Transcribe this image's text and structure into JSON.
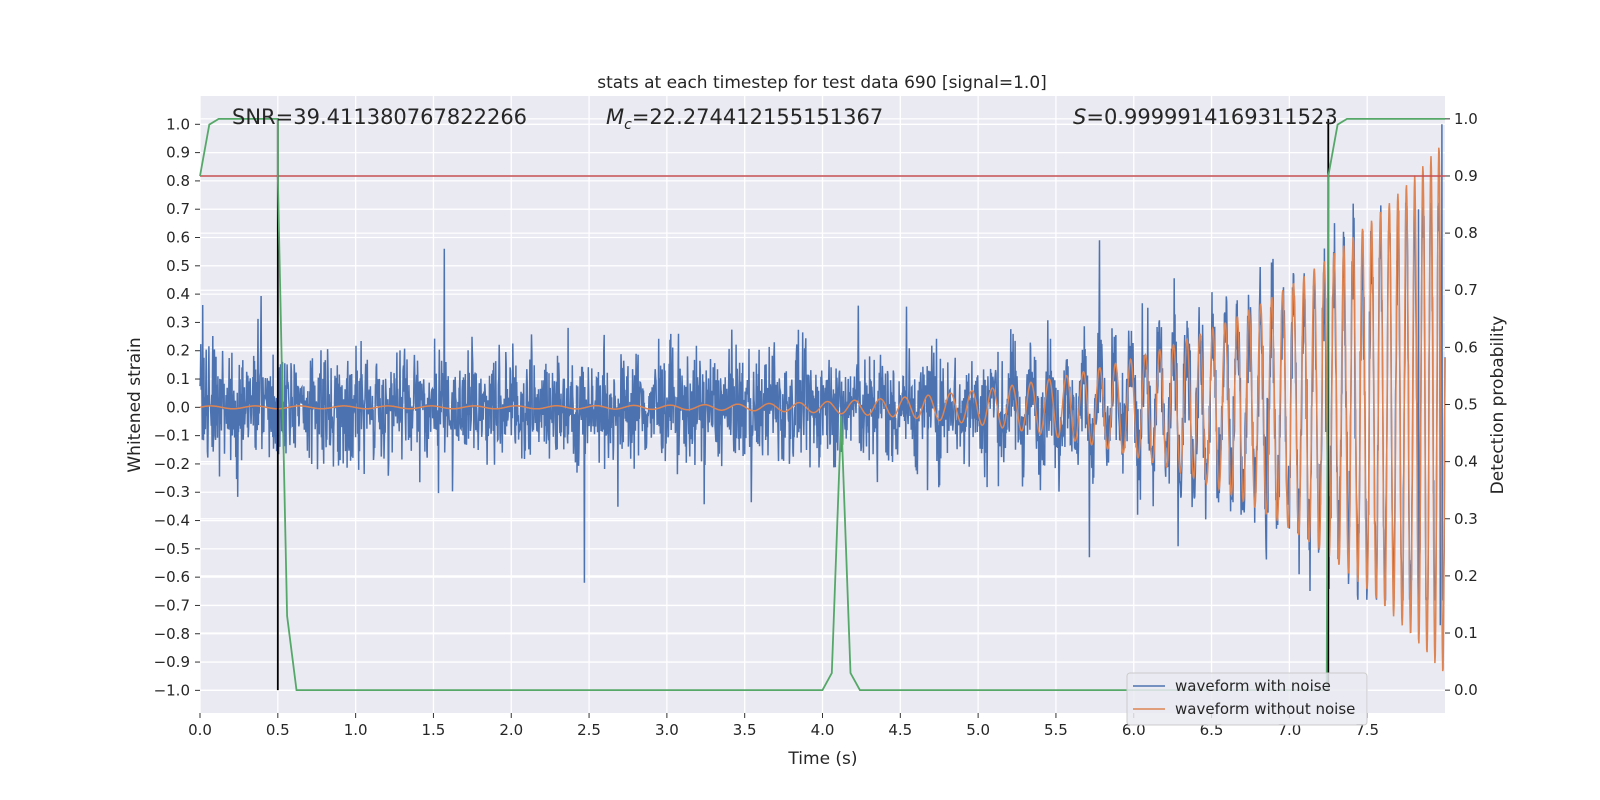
{
  "chart_data": {
    "type": "line",
    "title": "stats at each timestep for test data 690 [signal=1.0]",
    "xlabel": "Time (s)",
    "ylabel": "Whitened strain",
    "y2label": "Detection probability",
    "xlim": [
      0.0,
      8.0
    ],
    "ylim": [
      -1.08,
      1.1
    ],
    "y2lim": [
      -0.04,
      1.04
    ],
    "x_ticks": [
      0.0,
      0.5,
      1.0,
      1.5,
      2.0,
      2.5,
      3.0,
      3.5,
      4.0,
      4.5,
      5.0,
      5.5,
      6.0,
      6.5,
      7.0,
      7.5
    ],
    "x_tick_labels": [
      "0.0",
      "0.5",
      "1.0",
      "1.5",
      "2.0",
      "2.5",
      "3.0",
      "3.5",
      "4.0",
      "4.5",
      "5.0",
      "5.5",
      "6.0",
      "6.5",
      "7.0",
      "7.5"
    ],
    "y_ticks": [
      1.0,
      0.9,
      0.8,
      0.7,
      0.6,
      0.5,
      0.4,
      0.3,
      0.2,
      0.1,
      0.0,
      -0.1,
      -0.2,
      -0.3,
      -0.4,
      -0.5,
      -0.6,
      -0.7,
      -0.8,
      -0.9,
      -1.0
    ],
    "y_tick_labels": [
      "1.0",
      "0.9",
      "0.8",
      "0.7",
      "0.6",
      "0.5",
      "0.4",
      "0.3",
      "0.2",
      "0.1",
      "0.0",
      "−0.1",
      "−0.2",
      "−0.3",
      "−0.4",
      "−0.5",
      "−0.6",
      "−0.7",
      "−0.8",
      "−0.9",
      "−1.0"
    ],
    "y2_ticks": [
      1.0,
      0.9,
      0.8,
      0.7,
      0.6,
      0.5,
      0.4,
      0.3,
      0.2,
      0.1,
      0.0
    ],
    "y2_tick_labels": [
      "1.0",
      "0.9",
      "0.8",
      "0.7",
      "0.6",
      "0.5",
      "0.4",
      "0.3",
      "0.2",
      "0.1",
      "0.0"
    ],
    "annotations": {
      "snr": "SNR=39.411380767822266",
      "mc_symbol": "M",
      "mc_subscript": "c",
      "mc_value": "=22.274412155151367",
      "s_symbol": "S",
      "s_value": "=0.9999914169311523"
    },
    "threshold": {
      "axis": "y2",
      "value": 0.9,
      "color": "#c44e52"
    },
    "vertical_markers": [
      {
        "x": 0.5,
        "y2_from": 0.0,
        "y2_to": 1.0,
        "color": "#000000"
      },
      {
        "x": 7.25,
        "y2_from": 0.0,
        "y2_to": 1.0,
        "color": "#000000"
      }
    ],
    "series": [
      {
        "name": "waveform with noise",
        "axis": "y",
        "color": "#4c72b0",
        "style": "noisy signal, amplitude ~0.2 with peaks to ±0.5, growing chirp near end",
        "x_range": [
          0.0,
          8.0
        ],
        "peaks": [
          {
            "x": 1.57,
            "y": 0.56
          },
          {
            "x": 2.47,
            "y": -0.62
          },
          {
            "x": 5.78,
            "y": 0.59
          },
          {
            "x": 7.83,
            "y": 0.7
          },
          {
            "x": 7.98,
            "y": 1.0
          },
          {
            "x": 7.97,
            "y": -0.77
          }
        ]
      },
      {
        "name": "waveform without noise",
        "axis": "y",
        "color": "#dd8452",
        "style": "chirp: oscillation frequency and amplitude increase with time",
        "x_range": [
          0.0,
          8.0
        ],
        "amplitude_start": 0.005,
        "amplitude_end": 0.95,
        "freq_start_hz": 3.5,
        "freq_end_hz": 20
      },
      {
        "name": "detection probability",
        "axis": "y2",
        "color": "#55a868",
        "x": [
          0.0,
          0.06,
          0.12,
          0.5,
          0.5,
          0.56,
          0.62,
          4.0,
          4.06,
          4.12,
          4.18,
          4.24,
          7.24,
          7.25,
          7.31,
          7.37,
          8.0
        ],
        "values": [
          0.9,
          0.99,
          1.0,
          1.0,
          0.9,
          0.13,
          0.0,
          0.0,
          0.03,
          0.48,
          0.03,
          0.0,
          0.0,
          0.9,
          0.99,
          1.0,
          1.0
        ]
      }
    ],
    "legend": {
      "location": "bottom-right",
      "entries": [
        {
          "label": "waveform with noise",
          "color": "#4c72b0"
        },
        {
          "label": "waveform without noise",
          "color": "#dd8452"
        }
      ]
    },
    "grid": true,
    "background": "#eaeaf2"
  }
}
